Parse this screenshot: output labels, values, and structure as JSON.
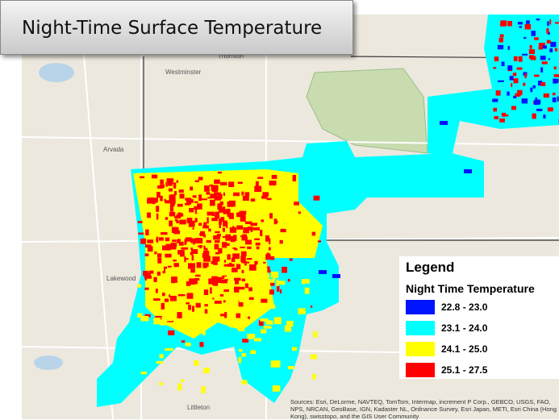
{
  "title": "Night-Time Surface Temperature",
  "legend": {
    "title": "Legend",
    "subtitle": "Night Time Temperature",
    "items": [
      {
        "label": "22.8 - 23.0",
        "color": "#0014ff"
      },
      {
        "label": "23.1 - 24.0",
        "color": "#00ffff"
      },
      {
        "label": "24.1 - 25.0",
        "color": "#ffff00"
      },
      {
        "label": "25.1 - 27.5",
        "color": "#ff0000"
      }
    ]
  },
  "places": [
    "Westminster",
    "Thornton",
    "Arvada",
    "Lakewood",
    "Littleton"
  ],
  "attribution": "Sources: Esri, DeLorme, NAVTEQ, TomTom, Intermap, increment P Corp., GEBCO, USGS, FAO, NPS, NRCAN, GeoBase, IGN, Kadaster NL, Ordnance Survey, Esri Japan, METI, Esri China (Hong Kong), swisstopo, and the GIS User Community"
}
